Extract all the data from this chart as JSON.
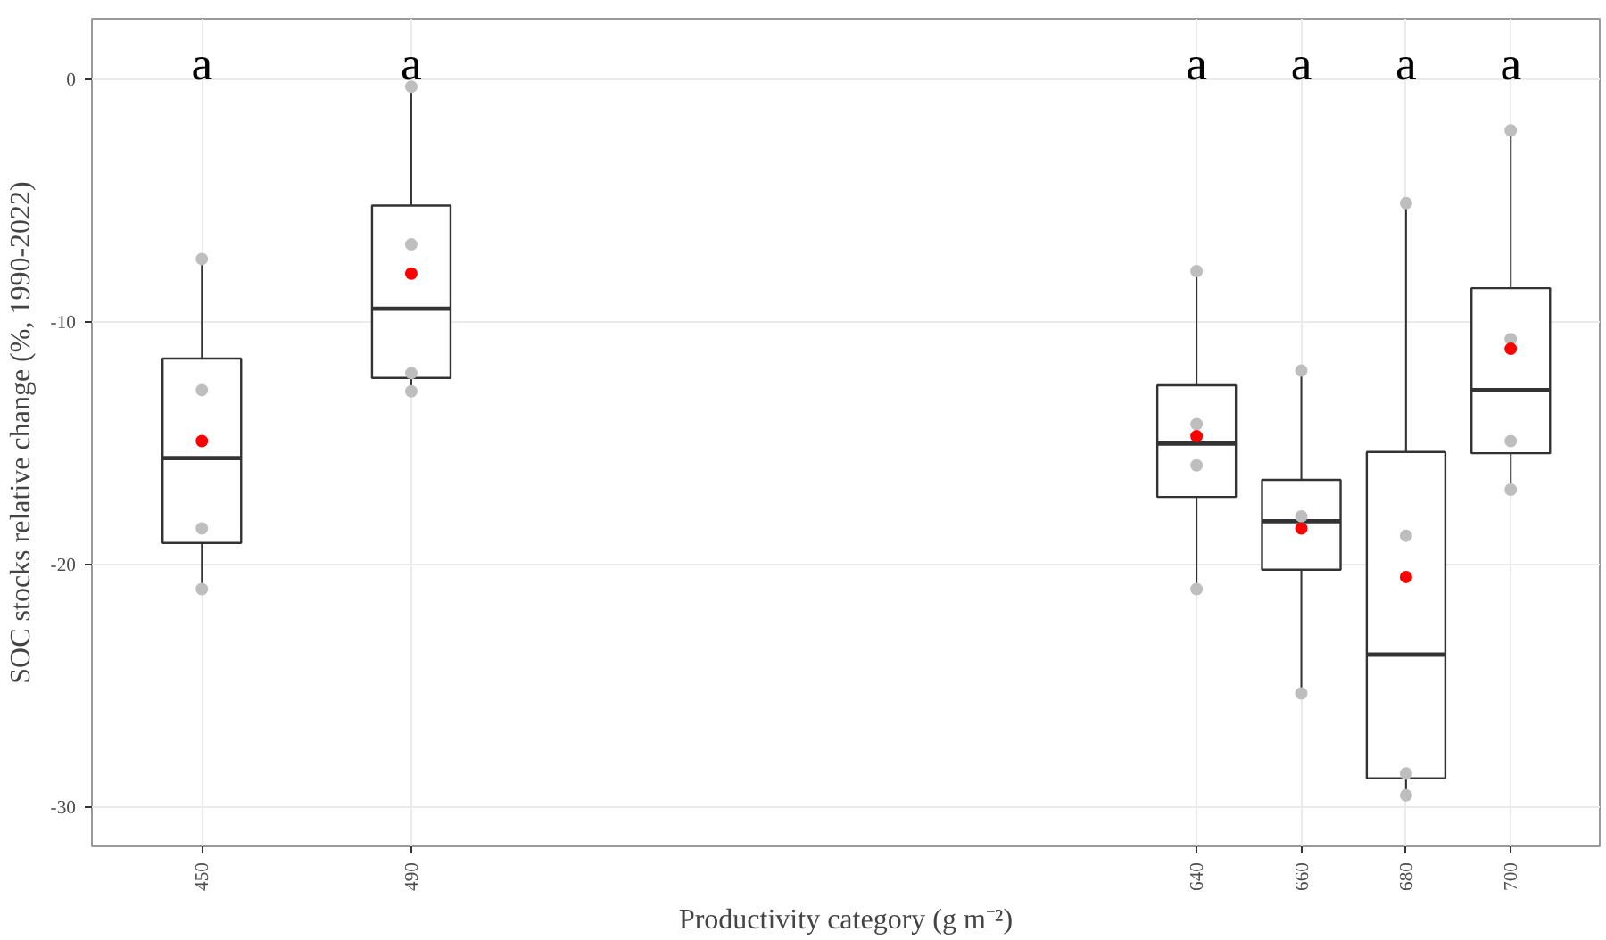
{
  "chart_data": {
    "type": "box",
    "xlabel": "Productivity category (g m⁻²)",
    "ylabel": "SOC stocks relative change (%, 1990-2022)",
    "x": [
      450,
      490,
      640,
      660,
      680,
      700
    ],
    "xlim": [
      429,
      717
    ],
    "xticks": [
      450,
      490,
      640,
      660,
      680,
      700
    ],
    "ylim": [
      -31.6,
      2.5
    ],
    "yticks": [
      0,
      -10,
      -20,
      -30
    ],
    "grid": true,
    "series": [
      {
        "color": "#333333",
        "boxes": [
          {
            "low": -21.0,
            "q1": -19.1,
            "median": -15.6,
            "q3": -11.5,
            "high": -7.4
          },
          {
            "low": -12.85,
            "q1": -12.3,
            "median": -9.45,
            "q3": -5.2,
            "high": -0.3
          },
          {
            "low": -21.0,
            "q1": -17.2,
            "median": -15.0,
            "q3": -12.6,
            "high": -7.9
          },
          {
            "low": -25.3,
            "q1": -20.2,
            "median": -18.2,
            "q3": -16.5,
            "high": -12.0
          },
          {
            "low": -29.5,
            "q1": -28.8,
            "median": -23.7,
            "q3": -15.35,
            "high": -5.1
          },
          {
            "low": -16.9,
            "q1": -15.4,
            "median": -12.8,
            "q3": -8.6,
            "high": -2.1
          }
        ]
      },
      {
        "type": "scatter",
        "color": "#bebebe",
        "x": [
          450,
          450,
          450,
          450,
          490,
          490,
          490,
          490,
          640,
          640,
          640,
          640,
          660,
          660,
          660,
          680,
          680,
          680,
          680,
          700,
          700,
          700,
          700
        ],
        "values": [
          -7.4,
          -12.8,
          -18.5,
          -21.0,
          -0.3,
          -6.8,
          -12.1,
          -12.85,
          -7.9,
          -14.2,
          -15.9,
          -21.0,
          -12.0,
          -18.0,
          -25.3,
          -5.1,
          -18.8,
          -28.6,
          -29.5,
          -2.1,
          -10.7,
          -14.9,
          -16.9
        ]
      },
      {
        "type": "scatter",
        "color": "#ff0000",
        "x": [
          450,
          490,
          640,
          660,
          680,
          700
        ],
        "values": [
          -14.9,
          -8.0,
          -14.7,
          -18.5,
          -20.5,
          -11.1
        ]
      }
    ],
    "annotations": [
      "a",
      "a",
      "a",
      "a",
      "a",
      "a"
    ]
  }
}
